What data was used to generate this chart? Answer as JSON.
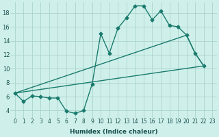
{
  "xlabel": "Humidex (Indice chaleur)",
  "background_color": "#cff0ea",
  "grid_color": "#aad4cc",
  "line_color": "#1a7a6e",
  "xlim": [
    -0.5,
    23.5
  ],
  "ylim": [
    3,
    19.5
  ],
  "yticks": [
    4,
    6,
    8,
    10,
    12,
    14,
    16,
    18
  ],
  "xticks": [
    0,
    1,
    2,
    3,
    4,
    5,
    6,
    7,
    8,
    9,
    10,
    11,
    12,
    13,
    14,
    15,
    16,
    17,
    18,
    19,
    20,
    21,
    22,
    23
  ],
  "line1_x": [
    0,
    1,
    2,
    3,
    4,
    5,
    6,
    7,
    8,
    9,
    10,
    11,
    12,
    13,
    14,
    15,
    16,
    17,
    18,
    19,
    20,
    21,
    22
  ],
  "line1_y": [
    6.5,
    5.3,
    6.1,
    6.0,
    5.8,
    5.8,
    3.9,
    3.6,
    4.0,
    7.8,
    15.0,
    12.2,
    15.8,
    17.3,
    19.0,
    19.0,
    17.0,
    18.3,
    16.2,
    16.0,
    14.8,
    12.2,
    10.4
  ],
  "line2_x": [
    0,
    22
  ],
  "line2_y": [
    6.5,
    10.4
  ],
  "line3_x": [
    0,
    20,
    21,
    22
  ],
  "line3_y": [
    6.5,
    14.8,
    12.2,
    10.4
  ],
  "marker": "D",
  "markersize": 2.5,
  "linewidth": 1.0,
  "font_size_tick": 5.5,
  "font_size_label": 6.5,
  "font_color": "#1a5050"
}
